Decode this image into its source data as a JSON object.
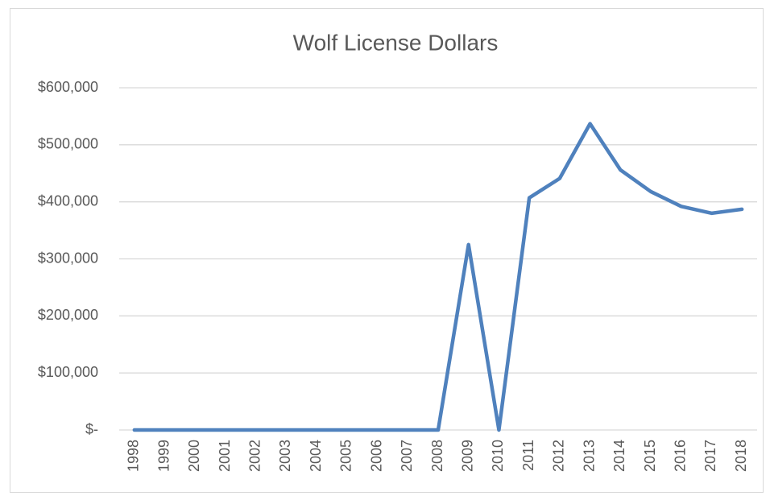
{
  "chart_data": {
    "type": "line",
    "title": "Wolf License Dollars",
    "categories": [
      "1998",
      "1999",
      "2000",
      "2001",
      "2002",
      "2003",
      "2004",
      "2005",
      "2006",
      "2007",
      "2008",
      "2009",
      "2010",
      "2011",
      "2012",
      "2013",
      "2014",
      "2015",
      "2016",
      "2017",
      "2018"
    ],
    "series": [
      {
        "name": "Wolf License Dollars",
        "color": "#4f81bd",
        "values": [
          0,
          0,
          0,
          0,
          0,
          0,
          0,
          0,
          0,
          0,
          0,
          325000,
          0,
          407000,
          441000,
          537000,
          456000,
          418000,
          392000,
          380000,
          387000
        ]
      }
    ],
    "ylim": [
      0,
      600000
    ],
    "yticks": [
      {
        "value": 0,
        "label": "$-"
      },
      {
        "value": 100000,
        "label": "$100,000"
      },
      {
        "value": 200000,
        "label": "$200,000"
      },
      {
        "value": 300000,
        "label": "$300,000"
      },
      {
        "value": 400000,
        "label": "$400,000"
      },
      {
        "value": 500000,
        "label": "$500,000"
      },
      {
        "value": 600000,
        "label": "$600,000"
      }
    ],
    "grid": true
  }
}
